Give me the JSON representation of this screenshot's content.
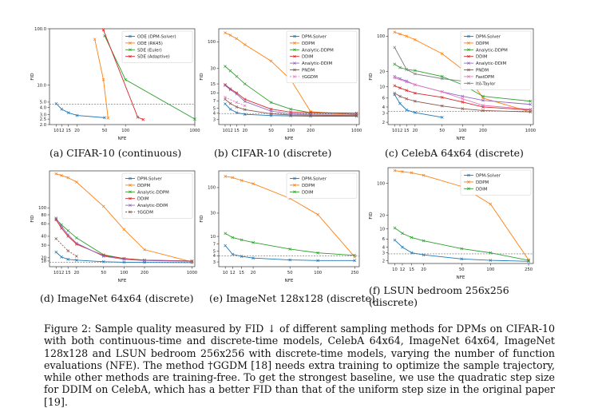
{
  "chart_data": [
    {
      "type": "line",
      "id": "a",
      "caption": "(a) CIFAR-10 (continuous)",
      "xlabel": "NFE",
      "ylabel": "FID",
      "xscale": "log",
      "yscale": "log",
      "xlim": [
        8,
        1000
      ],
      "ylim": [
        2.0,
        100
      ],
      "xticks": [
        10,
        12,
        15,
        20,
        50,
        100,
        1000
      ],
      "xtick_labels": [
        "10",
        "12",
        "15",
        "20",
        "50",
        "100",
        "1000"
      ],
      "yticks": [
        2.0,
        2.5,
        3.0,
        4.0,
        5.0,
        10.0,
        100.0
      ],
      "ytick_labels": [
        "2.0",
        "2.5",
        "3.0",
        "4.0",
        "5.0",
        "10.0",
        "100.0"
      ],
      "baseline": 4.6,
      "legend_loc": "upper right",
      "series": [
        {
          "name": "ODE (DPM-Solver)",
          "color": "#1f77b4",
          "x": [
            10,
            12,
            15,
            20,
            50
          ],
          "y": [
            4.7,
            3.75,
            3.24,
            2.9,
            2.65
          ]
        },
        {
          "name": "ODE (RK45)",
          "color": "#ff7f0e",
          "x": [
            36,
            48,
            56
          ],
          "y": [
            65,
            12.5,
            2.6
          ]
        },
        {
          "name": "SDE (Euler)",
          "color": "#2ca02c",
          "x": [
            50,
            100,
            1000
          ],
          "y": [
            75,
            12.5,
            2.5
          ]
        },
        {
          "name": "SDE (Adaptive)",
          "color": "#d62728",
          "x": [
            48,
            150,
            180
          ],
          "y": [
            95,
            2.7,
            2.45
          ]
        }
      ]
    },
    {
      "type": "line",
      "id": "b",
      "caption": "(b) CIFAR-10 (discrete)",
      "xlabel": "NFE",
      "ylabel": "FID",
      "xscale": "log",
      "yscale": "log",
      "xlim": [
        8,
        1100
      ],
      "ylim": [
        2.4,
        180
      ],
      "xticks": [
        10,
        12,
        15,
        20,
        50,
        100,
        200,
        1000
      ],
      "xtick_labels": [
        "10",
        "12",
        "15",
        "20",
        "50",
        "100",
        "200",
        "1000"
      ],
      "yticks": [
        3,
        4,
        5,
        7,
        10,
        15,
        30,
        100
      ],
      "ytick_labels": [
        "3",
        "4",
        "5",
        "7",
        "10",
        "15",
        "30",
        "100"
      ],
      "baseline": 3.95,
      "legend_loc": "upper right",
      "series": [
        {
          "name": "DPM-Solver",
          "color": "#1f77b4",
          "x": [
            10,
            12,
            15,
            20,
            50,
            100,
            200,
            1000
          ],
          "y": [
            6.1,
            4.8,
            4.1,
            3.8,
            3.6,
            3.55,
            3.5,
            3.5
          ]
        },
        {
          "name": "DDPM",
          "color": "#ff7f0e",
          "x": [
            10,
            12,
            15,
            20,
            50,
            100,
            200,
            1000
          ],
          "y": [
            150,
            135,
            115,
            88,
            42,
            18,
            4.3,
            3.7
          ]
        },
        {
          "name": "Analytic-DDPM",
          "color": "#2ca02c",
          "x": [
            10,
            12,
            15,
            20,
            50,
            100,
            200,
            1000
          ],
          "y": [
            33,
            27,
            21,
            15,
            6.5,
            4.8,
            4.1,
            4.0
          ]
        },
        {
          "name": "DDIM",
          "color": "#d62728",
          "x": [
            10,
            12,
            15,
            20,
            50,
            100,
            200,
            1000
          ],
          "y": [
            14.5,
            12,
            10,
            7.5,
            4.8,
            4.2,
            4.1,
            4.0
          ]
        },
        {
          "name": "Analytic-DDIM",
          "color": "#9467bd",
          "x": [
            10,
            12,
            15,
            20,
            50,
            100,
            200,
            1000
          ],
          "y": [
            14,
            11.5,
            9.5,
            6.8,
            4.4,
            3.9,
            3.8,
            3.8
          ]
        },
        {
          "name": "PNDM",
          "color": "#8c564b",
          "x": [
            10,
            12,
            15,
            20,
            50,
            100,
            200,
            1000
          ],
          "y": [
            7.5,
            6.2,
            5.3,
            4.7,
            3.9,
            3.7,
            3.65,
            3.6
          ]
        },
        {
          "name": "†GGDM",
          "color": "#e377c2",
          "dashed": true,
          "x": [
            10,
            15,
            20
          ],
          "y": [
            8.2,
            6.5,
            5.6
          ]
        }
      ]
    },
    {
      "type": "line",
      "id": "c",
      "caption": "(c) CelebA 64x64 (discrete)",
      "xlabel": "NFE",
      "ylabel": "FID",
      "xscale": "log",
      "yscale": "log",
      "xlim": [
        8,
        1100
      ],
      "ylim": [
        1.8,
        140
      ],
      "xticks": [
        10,
        12,
        15,
        20,
        50,
        100,
        200,
        1000
      ],
      "xtick_labels": [
        "10",
        "12",
        "15",
        "20",
        "50",
        "100",
        "200",
        "1000"
      ],
      "yticks": [
        2,
        3,
        4,
        6,
        10,
        20,
        100
      ],
      "ytick_labels": [
        "2",
        "3",
        "4",
        "6",
        "10",
        "20",
        "100"
      ],
      "baseline": 3.3,
      "legend_loc": "upper right",
      "series": [
        {
          "name": "DPM-Solver",
          "color": "#1f77b4",
          "x": [
            10,
            12,
            15,
            20,
            50
          ],
          "y": [
            7,
            4.7,
            3.5,
            3.1,
            2.5
          ]
        },
        {
          "name": "DDPM",
          "color": "#ff7f0e",
          "x": [
            10,
            12,
            15,
            20,
            50,
            100,
            200,
            1000
          ],
          "y": [
            120,
            110,
            100,
            85,
            45,
            22,
            6,
            3.2
          ]
        },
        {
          "name": "Analytic-DDPM",
          "color": "#2ca02c",
          "x": [
            10,
            12,
            15,
            20,
            50,
            100,
            200,
            1000
          ],
          "y": [
            28,
            24,
            22,
            21,
            16,
            11,
            6.5,
            5.2
          ]
        },
        {
          "name": "DDIM",
          "color": "#d62728",
          "x": [
            10,
            12,
            15,
            20,
            50,
            100,
            200,
            1000
          ],
          "y": [
            10.5,
            9.5,
            8.5,
            7.5,
            6.2,
            5,
            4,
            3.5
          ]
        },
        {
          "name": "Analytic-DDIM",
          "color": "#9467bd",
          "x": [
            10,
            12,
            15,
            20,
            50,
            100,
            200,
            1000
          ],
          "y": [
            16,
            14.5,
            13,
            11,
            8,
            6.5,
            5.4,
            4.5
          ]
        },
        {
          "name": "PNDM",
          "color": "#8c564b",
          "x": [
            10,
            12,
            15,
            20,
            50,
            100,
            200,
            1000
          ],
          "y": [
            7.5,
            6.5,
            5.8,
            5.2,
            4.2,
            3.7,
            3.4,
            3.2
          ]
        },
        {
          "name": "FastDPM",
          "color": "#e377c2",
          "x": [
            10,
            15,
            20,
            50,
            100,
            200,
            1000
          ],
          "y": [
            15,
            12.5,
            11,
            8,
            5.8,
            4.3,
            3.6
          ]
        },
        {
          "name": "Itô-Taylor",
          "color": "#7f7f7f",
          "x": [
            10,
            15,
            20,
            50,
            100
          ],
          "y": [
            60,
            22,
            18,
            14.5,
            13
          ]
        }
      ]
    },
    {
      "type": "line",
      "id": "d",
      "caption": "(d) ImageNet 64x64 (discrete)",
      "xlabel": "NFE",
      "ylabel": "FID",
      "xscale": "log",
      "yscale": "log",
      "xlim": [
        8,
        1100
      ],
      "ylim": [
        15,
        330
      ],
      "xticks": [
        10,
        12,
        15,
        20,
        50,
        100,
        200,
        1000
      ],
      "xtick_labels": [
        "10",
        "12",
        "15",
        "20",
        "50",
        "100",
        "200",
        "1000"
      ],
      "yticks": [
        18,
        20,
        30,
        40,
        60,
        80,
        100
      ],
      "ytick_labels": [
        "18",
        "20",
        "30",
        "40",
        "60",
        "80",
        "100"
      ],
      "baseline": 17.3,
      "legend_loc": "upper right",
      "series": [
        {
          "name": "DPM-Solver",
          "color": "#1f77b4",
          "x": [
            10,
            12,
            15,
            20,
            50,
            100,
            200,
            1000
          ],
          "y": [
            24,
            20.5,
            19,
            18.5,
            17.6,
            17.3,
            17.2,
            17.1
          ]
        },
        {
          "name": "DDPM",
          "color": "#ff7f0e",
          "x": [
            10,
            12,
            15,
            20,
            50,
            100,
            200,
            1000
          ],
          "y": [
            300,
            285,
            265,
            230,
            105,
            50,
            26,
            17.5
          ]
        },
        {
          "name": "Analytic-DDPM",
          "color": "#2ca02c",
          "x": [
            10,
            12,
            15,
            20,
            50,
            100,
            200,
            1000
          ],
          "y": [
            70,
            58,
            48,
            38,
            22,
            19.5,
            18.5,
            18
          ]
        },
        {
          "name": "DDIM",
          "color": "#d62728",
          "x": [
            10,
            12,
            15,
            20,
            50,
            100,
            200,
            1000
          ],
          "y": [
            68,
            52,
            40,
            31,
            21.5,
            19.5,
            18.5,
            18
          ]
        },
        {
          "name": "Analytic-DDIM",
          "color": "#9467bd",
          "x": [
            10,
            12,
            15,
            20,
            50,
            100,
            200,
            1000
          ],
          "y": [
            72,
            55,
            42,
            32,
            21,
            19,
            18.3,
            17.8
          ]
        },
        {
          "name": "†GGDM",
          "color": "#8c564b",
          "dashed": true,
          "x": [
            10,
            15,
            20
          ],
          "y": [
            37,
            25,
            21
          ]
        }
      ]
    },
    {
      "type": "line",
      "id": "e",
      "caption": "(e) ImageNet 128x128 (discrete)",
      "xlabel": "NFE",
      "ylabel": "FID",
      "xscale": "log",
      "yscale": "log",
      "xlim": [
        8.5,
        280
      ],
      "ylim": [
        2.4,
        220
      ],
      "xticks": [
        10,
        12,
        15,
        20,
        50,
        100,
        250
      ],
      "xtick_labels": [
        "10",
        "12",
        "15",
        "20",
        "50",
        "100",
        "250"
      ],
      "yticks": [
        3,
        4,
        5,
        7,
        10,
        30,
        100
      ],
      "ytick_labels": [
        "3",
        "4",
        "5",
        "7",
        "10",
        "30",
        "100"
      ],
      "baseline": 4.0,
      "legend_loc": "upper right",
      "series": [
        {
          "name": "DPM-Solver",
          "color": "#1f77b4",
          "x": [
            10,
            12,
            15,
            20,
            50,
            100,
            250
          ],
          "y": [
            6.5,
            4.3,
            3.9,
            3.6,
            3.3,
            3.2,
            3.2
          ]
        },
        {
          "name": "DDPM",
          "color": "#ff7f0e",
          "x": [
            10,
            12,
            15,
            20,
            50,
            100,
            250
          ],
          "y": [
            170,
            160,
            140,
            120,
            60,
            28,
            3.8
          ]
        },
        {
          "name": "DDIM",
          "color": "#2ca02c",
          "x": [
            10,
            12,
            15,
            20,
            50,
            100,
            250
          ],
          "y": [
            11.5,
            9.5,
            8.5,
            7.5,
            5.5,
            4.6,
            4.1
          ]
        }
      ]
    },
    {
      "type": "line",
      "id": "f",
      "caption": "(f) LSUN bedroom 256x256 (discrete)",
      "xlabel": "NFE",
      "ylabel": "FID",
      "xscale": "log",
      "yscale": "log",
      "xlim": [
        8.5,
        280
      ],
      "ylim": [
        1.75,
        220
      ],
      "xticks": [
        10,
        12,
        15,
        20,
        50,
        100,
        250
      ],
      "xtick_labels": [
        "10",
        "12",
        "15",
        "20",
        "50",
        "100",
        "250"
      ],
      "yticks": [
        2,
        3,
        4,
        6,
        10,
        20,
        100
      ],
      "ytick_labels": [
        "2",
        "3",
        "4",
        "6",
        "10",
        "20",
        "100"
      ],
      "baseline": 2.85,
      "legend_loc": "upper right",
      "series": [
        {
          "name": "DPM-Solver",
          "color": "#1f77b4",
          "x": [
            10,
            12,
            15,
            20,
            50,
            100,
            250
          ],
          "y": [
            5.7,
            4,
            3,
            2.7,
            2.2,
            2.05,
            1.95
          ]
        },
        {
          "name": "DDPM",
          "color": "#ff7f0e",
          "x": [
            10,
            12,
            15,
            20,
            50,
            100,
            250
          ],
          "y": [
            190,
            180,
            170,
            150,
            85,
            35,
            2.1
          ]
        },
        {
          "name": "DDIM",
          "color": "#2ca02c",
          "x": [
            10,
            12,
            15,
            20,
            50,
            100,
            250
          ],
          "y": [
            10.5,
            8,
            6.5,
            5.5,
            3.7,
            3,
            2.05
          ]
        }
      ]
    }
  ],
  "figure_caption": "Figure 2: Sample quality measured by FID ↓ of different sampling methods for DPMs on CIFAR-10 with both continuous-time and discrete-time models, CelebA 64x64, ImageNet 64x64, ImageNet 128x128 and LSUN bedroom 256x256 with discrete-time models, varying the number of function evaluations (NFE). The method †GGDM [18] needs extra training to optimize the sample trajectory, while other methods are training-free. To get the strongest baseline, we use the quadratic step size for DDIM on CelebA, which has a better FID than that of the uniform step size in the original paper [19]."
}
